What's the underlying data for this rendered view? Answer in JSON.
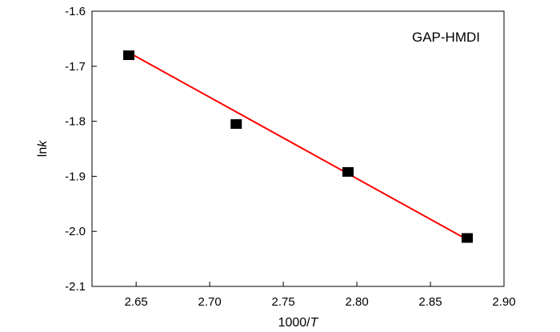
{
  "chart_data": {
    "type": "scatter",
    "annotation": "GAP-HMDI",
    "xlabel_prefix": "1000/",
    "xlabel_var": "T",
    "ylabel_prefix": "ln",
    "ylabel_var": "k",
    "xlim": [
      2.62,
      2.9
    ],
    "ylim": [
      -2.1,
      -1.6
    ],
    "xticks": [
      2.65,
      2.7,
      2.75,
      2.8,
      2.85,
      2.9
    ],
    "xtick_labels": [
      "2.65",
      "2.70",
      "2.75",
      "2.80",
      "2.85",
      "2.90"
    ],
    "yticks": [
      -2.1,
      -2.0,
      -1.9,
      -1.8,
      -1.7,
      -1.6
    ],
    "ytick_labels": [
      "-2.1",
      "-2.0",
      "-1.9",
      "-1.8",
      "-1.7",
      "-1.6"
    ],
    "grid": false,
    "series": [
      {
        "kind": "points",
        "marker": "square",
        "color": "#000000",
        "x": [
          2.645,
          2.718,
          2.794,
          2.875
        ],
        "y": [
          -1.68,
          -1.805,
          -1.892,
          -2.012
        ]
      },
      {
        "kind": "fit-line",
        "color": "#ff0000",
        "x": [
          2.645,
          2.875
        ],
        "y": [
          -1.675,
          -2.015
        ]
      }
    ]
  }
}
